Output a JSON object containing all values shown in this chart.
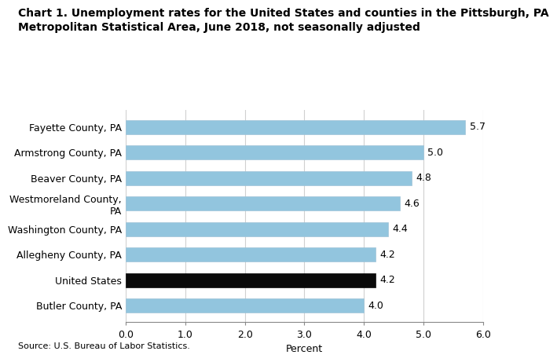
{
  "title_line1": "Chart 1. Unemployment rates for the United States and counties in the Pittsburgh, PA",
  "title_line2": "Metropolitan Statistical Area, June 2018, not seasonally adjusted",
  "categories": [
    "Butler County, PA",
    "United States",
    "Allegheny County, PA",
    "Washington County, PA",
    "Westmoreland County,\nPA",
    "Beaver County, PA",
    "Armstrong County, PA",
    "Fayette County, PA"
  ],
  "values": [
    4.0,
    4.2,
    4.2,
    4.4,
    4.6,
    4.8,
    5.0,
    5.7
  ],
  "bar_colors": [
    "#92c5de",
    "#0a0a0a",
    "#92c5de",
    "#92c5de",
    "#92c5de",
    "#92c5de",
    "#92c5de",
    "#92c5de"
  ],
  "xlabel": "Percent",
  "xlim": [
    0.0,
    6.0
  ],
  "xticks": [
    0.0,
    1.0,
    2.0,
    3.0,
    4.0,
    5.0,
    6.0
  ],
  "source": "Source: U.S. Bureau of Labor Statistics.",
  "title_fontsize": 10,
  "label_fontsize": 9,
  "tick_fontsize": 9,
  "value_fontsize": 9,
  "background_color": "#ffffff",
  "grid_color": "#d0d0d0",
  "bar_edge_color": "#a0c4d8"
}
